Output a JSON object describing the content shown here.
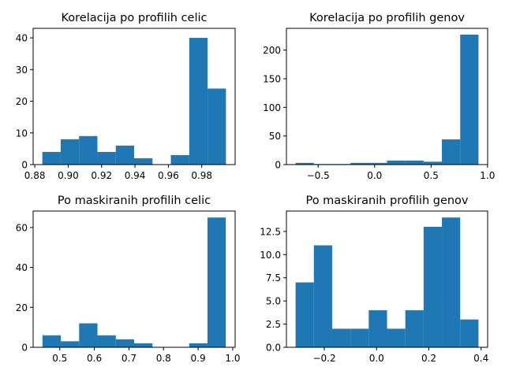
{
  "chart_data": [
    {
      "type": "bar",
      "title": "Korelacija po profilih celic",
      "bin_edges": [
        0.8845,
        0.8955,
        0.9065,
        0.9175,
        0.9285,
        0.9395,
        0.9505,
        0.9615,
        0.9725,
        0.9835,
        0.9945
      ],
      "values": [
        4,
        8,
        9,
        4,
        6,
        2,
        0,
        3,
        40,
        24
      ],
      "xlim": [
        0.879,
        1.0
      ],
      "ylim": [
        0,
        43
      ],
      "xticks": [
        0.88,
        0.9,
        0.92,
        0.94,
        0.96,
        0.98
      ],
      "xtick_labels": [
        "0.88",
        "0.90",
        "0.92",
        "0.94",
        "0.96",
        "0.98"
      ],
      "yticks": [
        0,
        10,
        20,
        30,
        40
      ],
      "ytick_labels": [
        "0",
        "10",
        "20",
        "30",
        "40"
      ],
      "color": "#1f77b4"
    },
    {
      "type": "bar",
      "title": "Korelacija po profilih genov",
      "bin_edges": [
        -0.7,
        -0.538,
        -0.376,
        -0.214,
        -0.052,
        0.11,
        0.272,
        0.434,
        0.596,
        0.758,
        0.92
      ],
      "values": [
        3,
        1,
        1,
        3,
        3,
        7,
        7,
        5,
        44,
        227
      ],
      "xlim": [
        -0.781,
        1.001
      ],
      "ylim": [
        0,
        238
      ],
      "xticks": [
        -0.5,
        0.0,
        0.5,
        1.0
      ],
      "xtick_labels": [
        "−0.5",
        "0.0",
        "0.5",
        "1.0"
      ],
      "yticks": [
        0,
        50,
        100,
        150,
        200
      ],
      "ytick_labels": [
        "0",
        "50",
        "100",
        "150",
        "200"
      ],
      "color": "#1f77b4"
    },
    {
      "type": "bar",
      "title": "Po maskiranih profilih celic",
      "bin_edges": [
        0.45,
        0.503,
        0.556,
        0.609,
        0.662,
        0.715,
        0.768,
        0.821,
        0.874,
        0.927,
        0.98
      ],
      "values": [
        6,
        3,
        12,
        6,
        4,
        2,
        0,
        0,
        2,
        65
      ],
      "xlim": [
        0.423,
        1.007
      ],
      "ylim": [
        0,
        68.25
      ],
      "xticks": [
        0.5,
        0.6,
        0.7,
        0.8,
        0.9,
        1.0
      ],
      "xtick_labels": [
        "0.5",
        "0.6",
        "0.7",
        "0.8",
        "0.9",
        "1.0"
      ],
      "yticks": [
        0,
        20,
        40,
        60
      ],
      "ytick_labels": [
        "0",
        "20",
        "40",
        "60"
      ],
      "color": "#1f77b4"
    },
    {
      "type": "bar",
      "title": "Po maskiranih profilih genov",
      "bin_edges": [
        -0.31,
        -0.24,
        -0.17,
        -0.1,
        -0.03,
        0.04,
        0.11,
        0.18,
        0.25,
        0.32,
        0.39
      ],
      "values": [
        7,
        11,
        2,
        2,
        4,
        2,
        4,
        13,
        14,
        3
      ],
      "xlim": [
        -0.345,
        0.425
      ],
      "ylim": [
        0,
        14.7
      ],
      "xticks": [
        -0.2,
        0.0,
        0.2,
        0.4
      ],
      "xtick_labels": [
        "−0.2",
        "0.0",
        "0.2",
        "0.4"
      ],
      "yticks": [
        0,
        2.5,
        5.0,
        7.5,
        10.0,
        12.5
      ],
      "ytick_labels": [
        "0.0",
        "2.5",
        "5.0",
        "7.5",
        "10.0",
        "12.5"
      ],
      "color": "#1f77b4"
    }
  ]
}
